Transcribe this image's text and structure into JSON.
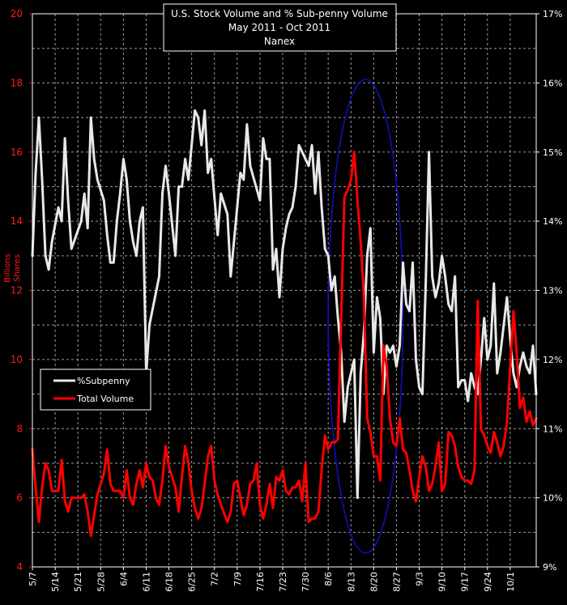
{
  "chart_data": {
    "type": "line",
    "title_lines": [
      "U.S. Stock Volume and % Sub-penny Volume",
      "May 2011 - Oct 2011",
      "Nanex"
    ],
    "ylabel_left": [
      "Billions",
      "Shares"
    ],
    "left_axis": {
      "min": 4,
      "max": 20,
      "ticks": [
        "4",
        "6",
        "8",
        "10",
        "12",
        "14",
        "16",
        "18",
        "20"
      ],
      "color": "#ff1a1a"
    },
    "right_axis": {
      "min": 9,
      "max": 17,
      "ticks": [
        "9%",
        "10%",
        "11%",
        "12%",
        "13%",
        "14%",
        "15%",
        "16%",
        "17%"
      ],
      "color": "#ffffff"
    },
    "x_ticks": [
      "5/7",
      "5/14",
      "5/21",
      "5/28",
      "6/4",
      "6/11",
      "6/18",
      "6/25",
      "7/2",
      "7/9",
      "7/16",
      "7/23",
      "7/30",
      "8/6",
      "8/13",
      "8/20",
      "8/27",
      "9/3",
      "9/10",
      "9/17",
      "9/24",
      "10/1"
    ],
    "x_range_days": [
      0,
      155
    ],
    "grid": true,
    "legend": {
      "placement": "left-middle",
      "items": [
        "%Subpenny",
        "Total Volume"
      ]
    },
    "series": [
      {
        "name": "%Subpenny",
        "axis": "right",
        "color": "#e8e8e8",
        "points": [
          [
            0,
            13.5
          ],
          [
            1,
            14.7
          ],
          [
            2,
            15.5
          ],
          [
            3,
            14.6
          ],
          [
            4,
            13.5
          ],
          [
            5,
            13.3
          ],
          [
            6,
            13.7
          ],
          [
            8,
            14.2
          ],
          [
            9,
            14
          ],
          [
            10,
            15.2
          ],
          [
            11,
            14.3
          ],
          [
            12,
            13.6
          ],
          [
            15,
            14
          ],
          [
            16,
            14.4
          ],
          [
            17,
            13.9
          ],
          [
            18,
            15.5
          ],
          [
            19,
            14.9
          ],
          [
            20,
            14.6
          ],
          [
            22,
            14.3
          ],
          [
            23,
            13.8
          ],
          [
            24,
            13.4
          ],
          [
            25,
            13.4
          ],
          [
            26,
            14
          ],
          [
            27,
            14.4
          ],
          [
            28,
            14.9
          ],
          [
            29,
            14.6
          ],
          [
            30,
            14
          ],
          [
            31,
            13.7
          ],
          [
            32,
            13.5
          ],
          [
            33,
            14
          ],
          [
            34,
            14.2
          ],
          [
            35,
            11.8
          ],
          [
            36,
            12.5
          ],
          [
            39,
            13.2
          ],
          [
            40,
            14.4
          ],
          [
            41,
            14.8
          ],
          [
            42,
            14.4
          ],
          [
            44,
            13.5
          ],
          [
            45,
            14.5
          ],
          [
            46,
            14.5
          ],
          [
            47,
            14.9
          ],
          [
            48,
            14.6
          ],
          [
            50,
            15.6
          ],
          [
            51,
            15.5
          ],
          [
            52,
            15.1
          ],
          [
            53,
            15.6
          ],
          [
            54,
            14.7
          ],
          [
            55,
            14.9
          ],
          [
            57,
            13.8
          ],
          [
            58,
            14.4
          ],
          [
            60,
            14.1
          ],
          [
            61,
            13.2
          ],
          [
            62,
            13.7
          ],
          [
            64,
            14.7
          ],
          [
            65,
            14.6
          ],
          [
            66,
            15.4
          ],
          [
            67,
            14.8
          ],
          [
            70,
            14.3
          ],
          [
            71,
            15.2
          ],
          [
            72,
            14.9
          ],
          [
            73,
            14.9
          ],
          [
            74,
            13.3
          ],
          [
            75,
            13.6
          ],
          [
            76,
            12.9
          ],
          [
            77,
            13.6
          ],
          [
            78,
            13.9
          ],
          [
            79,
            14.1
          ],
          [
            80,
            14.2
          ],
          [
            81,
            14.5
          ],
          [
            82,
            15.1
          ],
          [
            84,
            14.9
          ],
          [
            85,
            14.8
          ],
          [
            86,
            15.1
          ],
          [
            87,
            14.4
          ],
          [
            88,
            15
          ],
          [
            89,
            14.2
          ],
          [
            90,
            13.6
          ],
          [
            91,
            13.5
          ],
          [
            92,
            13
          ],
          [
            93,
            13.2
          ],
          [
            94,
            12.6
          ],
          [
            95,
            12.1
          ],
          [
            96,
            11.1
          ],
          [
            97,
            11.6
          ],
          [
            98,
            11.8
          ],
          [
            99,
            12
          ],
          [
            100,
            10
          ],
          [
            101,
            11.8
          ],
          [
            102,
            12.4
          ],
          [
            103,
            13.5
          ],
          [
            104,
            13.9
          ],
          [
            105,
            12.1
          ],
          [
            106,
            12.9
          ],
          [
            107,
            12.6
          ],
          [
            108,
            11.5
          ],
          [
            109,
            12.2
          ],
          [
            110,
            12.1
          ],
          [
            111,
            12.2
          ],
          [
            112,
            11.9
          ],
          [
            113,
            12.2
          ],
          [
            114,
            13.4
          ],
          [
            115,
            12.8
          ],
          [
            116,
            12.7
          ],
          [
            117,
            13.4
          ],
          [
            118,
            12
          ],
          [
            119,
            11.6
          ],
          [
            120,
            11.5
          ],
          [
            121,
            13.1
          ],
          [
            122,
            15
          ],
          [
            123,
            13.2
          ],
          [
            124,
            12.9
          ],
          [
            125,
            13.1
          ],
          [
            126,
            13.5
          ],
          [
            127,
            13.2
          ],
          [
            128,
            12.8
          ],
          [
            129,
            12.7
          ],
          [
            130,
            13.2
          ],
          [
            131,
            11.6
          ],
          [
            132,
            11.7
          ],
          [
            133,
            11.7
          ],
          [
            134,
            11.4
          ],
          [
            135,
            11.8
          ],
          [
            136,
            11.6
          ],
          [
            137,
            11.5
          ],
          [
            138,
            12
          ],
          [
            139,
            12.6
          ],
          [
            140,
            12
          ],
          [
            141,
            12.2
          ],
          [
            142,
            13.1
          ],
          [
            143,
            11.8
          ],
          [
            144,
            12.1
          ],
          [
            145,
            12.5
          ],
          [
            146,
            12.9
          ],
          [
            147,
            12.3
          ],
          [
            148,
            11.8
          ],
          [
            149,
            11.6
          ],
          [
            150,
            11.9
          ],
          [
            151,
            12.1
          ],
          [
            152,
            11.9
          ],
          [
            153,
            11.8
          ],
          [
            154,
            12.2
          ],
          [
            155,
            11.5
          ]
        ]
      },
      {
        "name": "Total Volume",
        "axis": "left",
        "color": "#ff0000",
        "points": [
          [
            0,
            7.4
          ],
          [
            1,
            6.3
          ],
          [
            2,
            5.3
          ],
          [
            3,
            6.3
          ],
          [
            4,
            7
          ],
          [
            5,
            6.8
          ],
          [
            6,
            6.2
          ],
          [
            8,
            6.2
          ],
          [
            9,
            7.1
          ],
          [
            10,
            5.9
          ],
          [
            11,
            5.6
          ],
          [
            12,
            6
          ],
          [
            15,
            6
          ],
          [
            16,
            6.1
          ],
          [
            17,
            5.6
          ],
          [
            18,
            4.9
          ],
          [
            19,
            5.5
          ],
          [
            20,
            6.1
          ],
          [
            22,
            6.7
          ],
          [
            23,
            7.4
          ],
          [
            24,
            6.4
          ],
          [
            25,
            6.2
          ],
          [
            26,
            6.2
          ],
          [
            27,
            6.2
          ],
          [
            28,
            6
          ],
          [
            29,
            6.8
          ],
          [
            30,
            6
          ],
          [
            31,
            5.8
          ],
          [
            32,
            6.4
          ],
          [
            33,
            6.8
          ],
          [
            34,
            6.3
          ],
          [
            35,
            7
          ],
          [
            36,
            6.6
          ],
          [
            37,
            6.5
          ],
          [
            38,
            6
          ],
          [
            39,
            5.8
          ],
          [
            40,
            6.5
          ],
          [
            41,
            7.5
          ],
          [
            42,
            6.9
          ],
          [
            43,
            6.6
          ],
          [
            44,
            6.3
          ],
          [
            45,
            5.6
          ],
          [
            46,
            6.6
          ],
          [
            47,
            7.5
          ],
          [
            48,
            7
          ],
          [
            49,
            6.2
          ],
          [
            50,
            5.7
          ],
          [
            51,
            5.4
          ],
          [
            52,
            5.7
          ],
          [
            53,
            6.4
          ],
          [
            54,
            7.2
          ],
          [
            55,
            7.5
          ],
          [
            56,
            6.5
          ],
          [
            57,
            6.1
          ],
          [
            58,
            5.8
          ],
          [
            60,
            5.3
          ],
          [
            61,
            5.6
          ],
          [
            62,
            6.4
          ],
          [
            63,
            6.5
          ],
          [
            65,
            5.5
          ],
          [
            66,
            5.8
          ],
          [
            67,
            6.4
          ],
          [
            68,
            6.5
          ],
          [
            69,
            7
          ],
          [
            70,
            5.8
          ],
          [
            71,
            5.4
          ],
          [
            72,
            5.8
          ],
          [
            73,
            6.4
          ],
          [
            74,
            5.7
          ],
          [
            75,
            6.6
          ],
          [
            76,
            6.5
          ],
          [
            77,
            6.8
          ],
          [
            78,
            6.2
          ],
          [
            79,
            6.1
          ],
          [
            80,
            6.3
          ],
          [
            81,
            6.3
          ],
          [
            82,
            6.5
          ],
          [
            83,
            5.9
          ],
          [
            84,
            7
          ],
          [
            85,
            5.3
          ],
          [
            86,
            5.4
          ],
          [
            87,
            5.4
          ],
          [
            88,
            5.6
          ],
          [
            89,
            6.8
          ],
          [
            90,
            7.8
          ],
          [
            91,
            7.4
          ],
          [
            92,
            7.6
          ],
          [
            93,
            7.6
          ],
          [
            94,
            7.7
          ],
          [
            96,
            14.7
          ],
          [
            97,
            14.9
          ],
          [
            98,
            15.2
          ],
          [
            99,
            16
          ],
          [
            100,
            14.6
          ],
          [
            101,
            13.4
          ],
          [
            102,
            11.8
          ],
          [
            103,
            8.3
          ],
          [
            104,
            7.9
          ],
          [
            105,
            7.2
          ],
          [
            106,
            7.2
          ],
          [
            107,
            6.5
          ],
          [
            108,
            10.4
          ],
          [
            109,
            9.8
          ],
          [
            110,
            8.3
          ],
          [
            111,
            7.6
          ],
          [
            112,
            7.5
          ],
          [
            113,
            8.3
          ],
          [
            114,
            7.4
          ],
          [
            115,
            7.3
          ],
          [
            116,
            6.8
          ],
          [
            117,
            6.2
          ],
          [
            118,
            5.9
          ],
          [
            119,
            6.6
          ],
          [
            120,
            7.2
          ],
          [
            121,
            6.9
          ],
          [
            122,
            6.2
          ],
          [
            123,
            6.4
          ],
          [
            124,
            6.9
          ],
          [
            125,
            7.6
          ],
          [
            126,
            6.2
          ],
          [
            127,
            6.4
          ],
          [
            128,
            7.9
          ],
          [
            129,
            7.8
          ],
          [
            130,
            7.5
          ],
          [
            131,
            6.9
          ],
          [
            132,
            6.6
          ],
          [
            133,
            6.5
          ],
          [
            134,
            6.5
          ],
          [
            135,
            6.4
          ],
          [
            136,
            6.8
          ],
          [
            137,
            11.7
          ],
          [
            138,
            8
          ],
          [
            139,
            7.8
          ],
          [
            140,
            7.5
          ],
          [
            141,
            7.3
          ],
          [
            142,
            7.9
          ],
          [
            143,
            7.6
          ],
          [
            144,
            7.2
          ],
          [
            145,
            7.5
          ],
          [
            146,
            8.2
          ],
          [
            147,
            9.8
          ],
          [
            148,
            11.4
          ],
          [
            149,
            10.2
          ],
          [
            150,
            8.6
          ],
          [
            151,
            8.9
          ],
          [
            152,
            8.2
          ],
          [
            153,
            8.5
          ],
          [
            154,
            8.1
          ],
          [
            155,
            8.3
          ]
        ]
      }
    ],
    "annotation": {
      "shape": "ellipse",
      "color": "#1010c0",
      "x_days": [
        91,
        114
      ],
      "y_left": [
        4.4,
        18.1
      ]
    }
  }
}
